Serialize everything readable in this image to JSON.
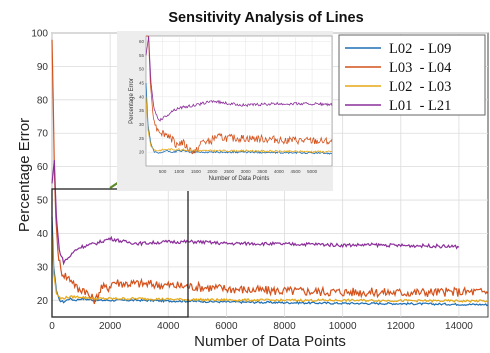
{
  "chart_data": {
    "type": "line",
    "title": "Sensitivity Analysis of Lines",
    "xlabel": "Number of Data Points",
    "ylabel": "Percentage Error",
    "xlim": [
      0,
      15000
    ],
    "ylim": [
      15,
      100
    ],
    "xticks": [
      "0",
      "2000",
      "4000",
      "6000",
      "8000",
      "10000",
      "12000",
      "14000"
    ],
    "yticks": [
      "20",
      "30",
      "40",
      "50",
      "60",
      "70",
      "80",
      "90",
      "100"
    ],
    "grid": true,
    "legend_position": "top-right",
    "series": [
      {
        "name": "L02  - L09",
        "color": "#1f6fb5",
        "points": [
          [
            0,
            45
          ],
          [
            60,
            30
          ],
          [
            150,
            23
          ],
          [
            250,
            20
          ],
          [
            400,
            19.5
          ],
          [
            600,
            20.5
          ],
          [
            800,
            20
          ],
          [
            1000,
            20.5
          ],
          [
            1500,
            20
          ],
          [
            2000,
            20
          ],
          [
            3000,
            20
          ],
          [
            4000,
            19.8
          ],
          [
            5000,
            19.7
          ],
          [
            6000,
            19.5
          ],
          [
            8000,
            19.3
          ],
          [
            10000,
            19.1
          ],
          [
            12000,
            19
          ],
          [
            14000,
            18.8
          ],
          [
            15000,
            18.7
          ]
        ]
      },
      {
        "name": "L03  - L04",
        "color": "#d4521c",
        "points": [
          [
            0,
            98
          ],
          [
            40,
            80
          ],
          [
            80,
            60
          ],
          [
            130,
            45
          ],
          [
            200,
            35
          ],
          [
            300,
            29
          ],
          [
            500,
            27
          ],
          [
            700,
            26
          ],
          [
            900,
            23
          ],
          [
            1100,
            23.5
          ],
          [
            1300,
            21
          ],
          [
            1500,
            20
          ],
          [
            1700,
            24
          ],
          [
            1900,
            23.5
          ],
          [
            2100,
            25.5
          ],
          [
            2500,
            25
          ],
          [
            3000,
            25
          ],
          [
            4000,
            24.5
          ],
          [
            5000,
            24
          ],
          [
            6000,
            23.5
          ],
          [
            7000,
            23
          ],
          [
            8000,
            22.8
          ],
          [
            10000,
            22.5
          ],
          [
            12000,
            22.3
          ],
          [
            14000,
            22.5
          ],
          [
            15000,
            22.5
          ]
        ]
      },
      {
        "name": "L02  - L03",
        "color": "#e6a817",
        "points": [
          [
            0,
            40
          ],
          [
            60,
            28
          ],
          [
            150,
            22
          ],
          [
            300,
            20.5
          ],
          [
            600,
            21
          ],
          [
            1000,
            21
          ],
          [
            1500,
            20.5
          ],
          [
            2000,
            20.5
          ],
          [
            3000,
            20.5
          ],
          [
            4000,
            20.3
          ],
          [
            5000,
            20.2
          ],
          [
            6000,
            20.1
          ],
          [
            8000,
            20
          ],
          [
            10000,
            20
          ],
          [
            12000,
            19.9
          ],
          [
            14000,
            19.8
          ],
          [
            15000,
            19.8
          ]
        ]
      },
      {
        "name": "L01  - L21",
        "color": "#8b2e9a",
        "points": [
          [
            0,
            55
          ],
          [
            80,
            62
          ],
          [
            150,
            45
          ],
          [
            250,
            35
          ],
          [
            400,
            31.5
          ],
          [
            600,
            33
          ],
          [
            800,
            35
          ],
          [
            1000,
            36
          ],
          [
            1500,
            37
          ],
          [
            2000,
            38.5
          ],
          [
            2500,
            37.5
          ],
          [
            3000,
            37
          ],
          [
            4000,
            37.5
          ],
          [
            5000,
            37.5
          ],
          [
            6000,
            37
          ],
          [
            7000,
            37
          ],
          [
            8000,
            36.8
          ],
          [
            9000,
            36.8
          ],
          [
            10000,
            36.5
          ],
          [
            11000,
            36.6
          ],
          [
            12000,
            36.4
          ],
          [
            13000,
            36.3
          ],
          [
            14000,
            36
          ]
        ]
      }
    ]
  }
}
